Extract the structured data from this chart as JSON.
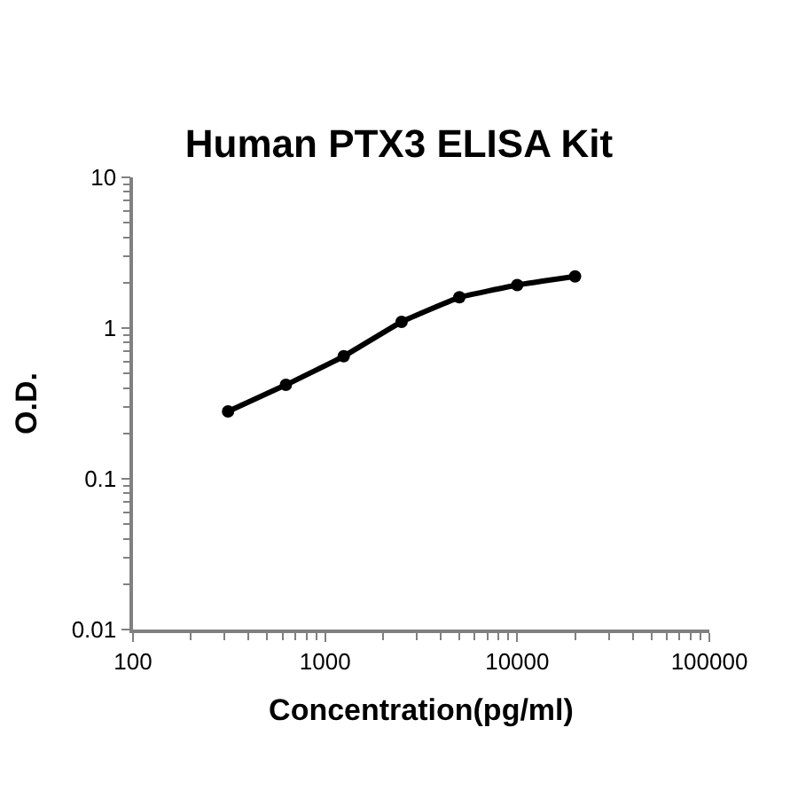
{
  "chart_data": {
    "type": "line",
    "title": "Human PTX3 ELISA Kit",
    "xlabel": "Concentration(pg/ml)",
    "ylabel": "O.D.",
    "log": "xy",
    "marker": "circle",
    "line_style": "solid",
    "legend": false,
    "x": [
      312.5,
      625,
      1250,
      2500,
      5000,
      10000,
      20000
    ],
    "series": [
      {
        "color": "#000000",
        "values": [
          0.28,
          0.42,
          0.65,
          1.1,
          1.6,
          1.93,
          2.2
        ]
      }
    ],
    "xlim": [
      100,
      100000
    ],
    "xticks": [
      100,
      1000,
      10000,
      100000
    ],
    "ylim": [
      0.01,
      10
    ],
    "yticks": [
      0.01,
      0.1,
      1,
      10
    ]
  }
}
